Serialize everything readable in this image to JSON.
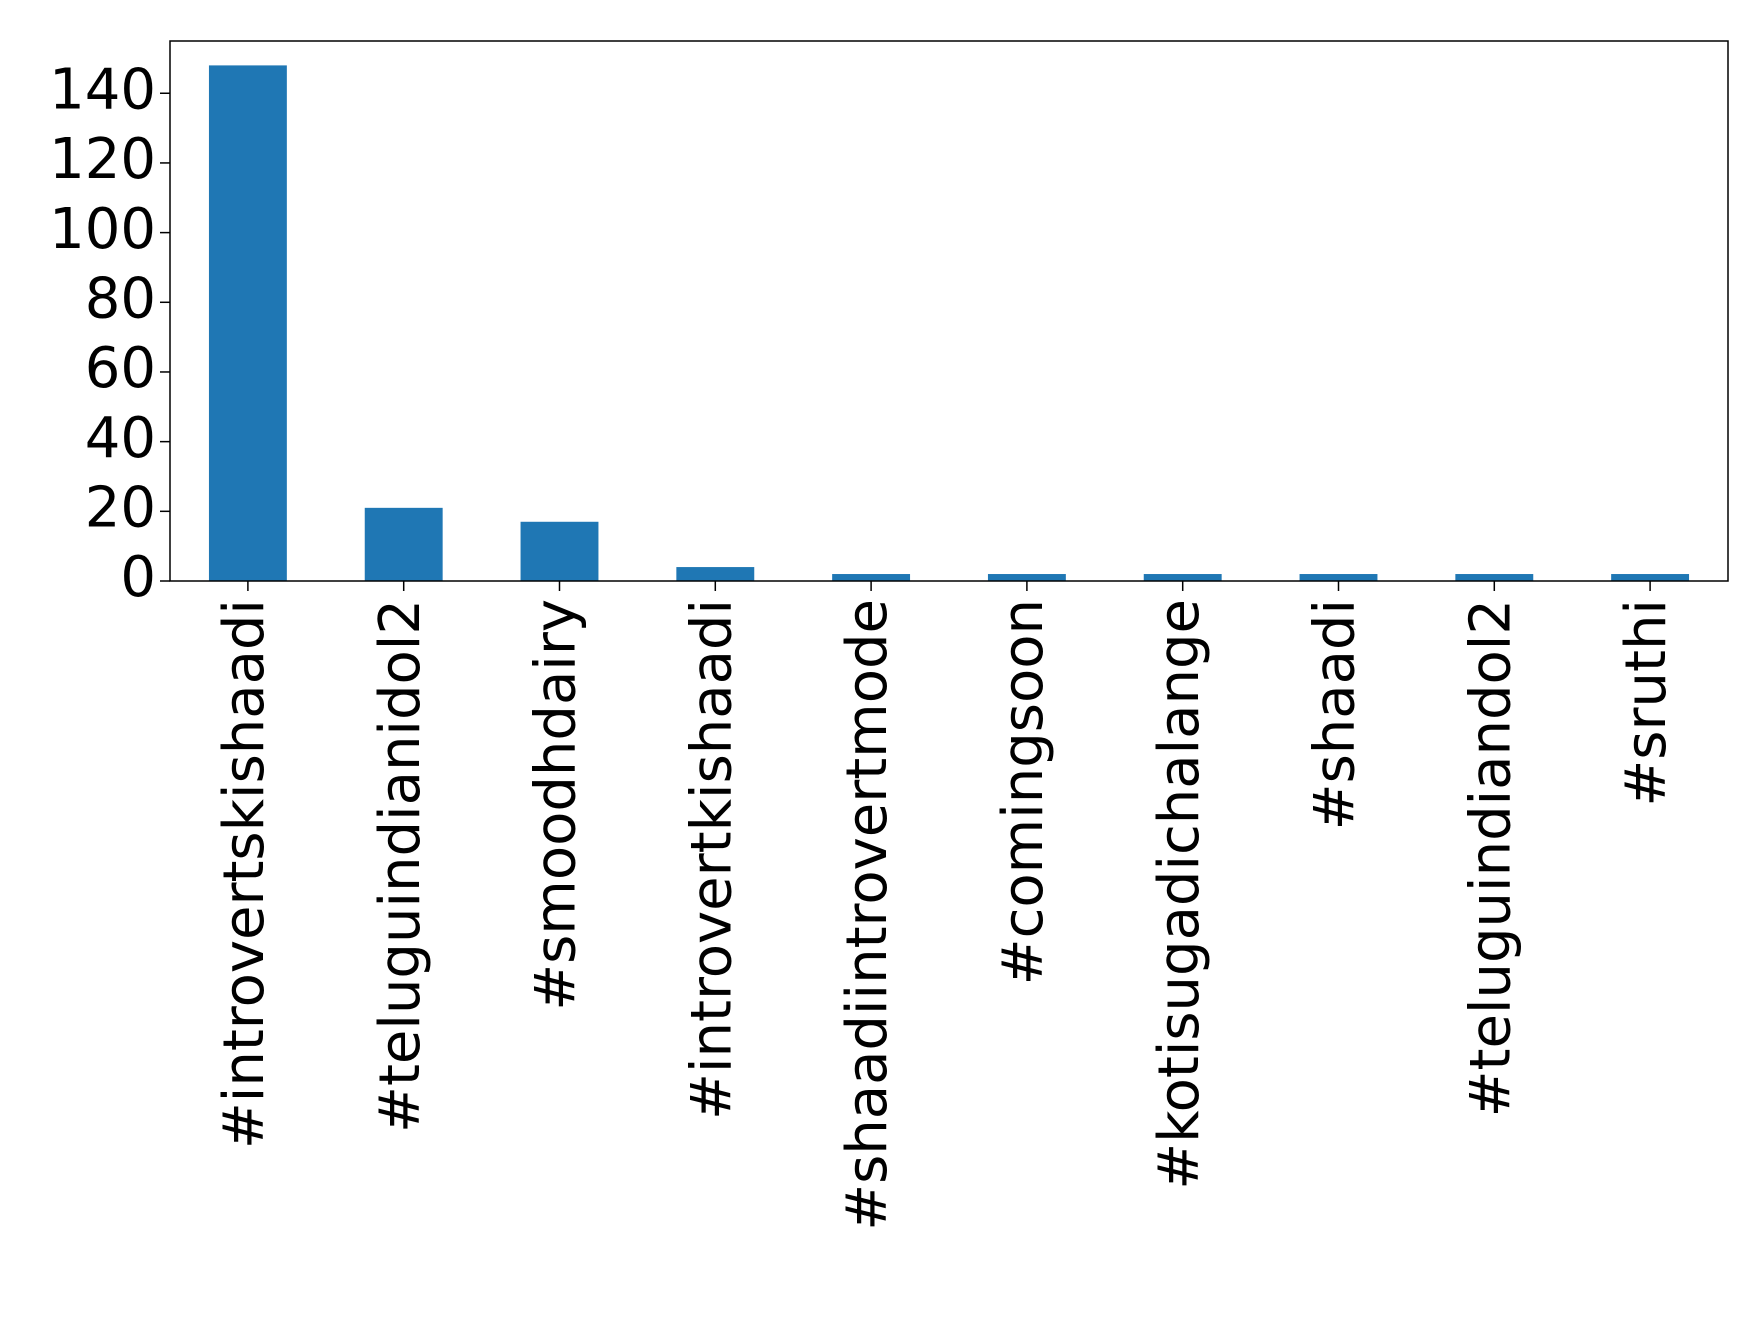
{
  "chart_data": {
    "type": "bar",
    "categories": [
      "#introvertskishaadi",
      "#teluguindianidol2",
      "#smoodhdairy",
      "#introvertkishaadi",
      "#shaadiintrovertmode",
      "#comingsoon",
      "#kotisugadichalange",
      "#shaadi",
      "#teluguindiandol2",
      "#sruthi"
    ],
    "values": [
      148,
      21,
      17,
      4,
      2,
      2,
      2,
      2,
      2,
      2
    ],
    "color": "#1f77b4",
    "ylim": [
      0,
      155
    ],
    "yticks": [
      0,
      20,
      40,
      60,
      80,
      100,
      120,
      140
    ],
    "grid": false
  }
}
